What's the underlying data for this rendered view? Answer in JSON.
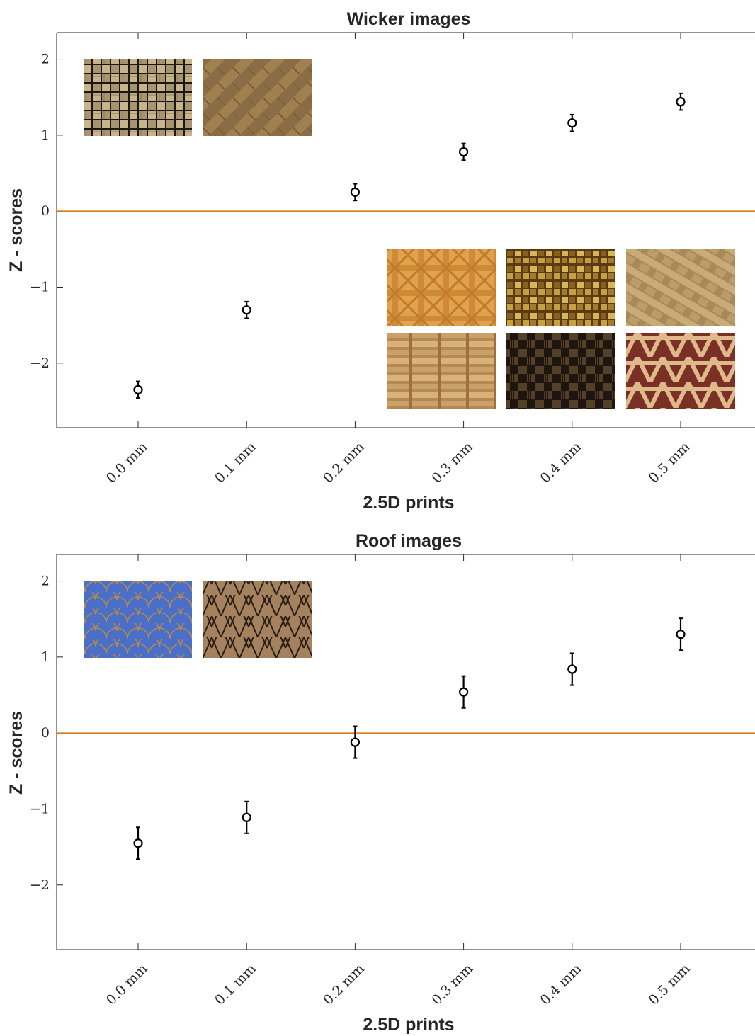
{
  "chart_data": [
    {
      "type": "scatter",
      "title": "Wicker images",
      "xlabel": "2.5D prints",
      "ylabel": "Z - scores",
      "categories": [
        "0.0 mm",
        "0.1 mm",
        "0.2 mm",
        "0.3 mm",
        "0.4 mm",
        "0.5 mm"
      ],
      "values": [
        -2.35,
        -1.3,
        0.25,
        0.78,
        1.16,
        1.44
      ],
      "error": [
        0.11,
        0.11,
        0.11,
        0.11,
        0.11,
        0.11
      ],
      "ylim": [
        -2.85,
        2.35
      ],
      "yticks": [
        2,
        1,
        0,
        -1,
        -2
      ],
      "ytick_labels": [
        "2",
        "1",
        "0",
        "−1",
        "−2"
      ],
      "reference_line": 0,
      "reference_color": "#d97a1a",
      "marker": "open-circle",
      "grid": false,
      "inset_images": {
        "top_left": [
          "wicker-basketweave-light",
          "wicker-herringbone-brown"
        ],
        "bottom_right": [
          "wicker-lattice-orange",
          "wicker-woven-gold",
          "wicker-twill-tan",
          "wicker-plain-weave-tan",
          "wicker-twill-dark",
          "wicker-triaxial-red"
        ]
      }
    },
    {
      "type": "scatter",
      "title": "Roof images",
      "xlabel": "2.5D prints",
      "ylabel": "Z - scores",
      "categories": [
        "0.0 mm",
        "0.1 mm",
        "0.2 mm",
        "0.3 mm",
        "0.4 mm",
        "0.5 mm"
      ],
      "values": [
        -1.45,
        -1.11,
        -0.12,
        0.54,
        0.84,
        1.3
      ],
      "error": [
        0.21,
        0.21,
        0.21,
        0.21,
        0.21,
        0.21
      ],
      "ylim": [
        -2.85,
        2.35
      ],
      "yticks": [
        2,
        1,
        0,
        -1,
        -2
      ],
      "ytick_labels": [
        "2",
        "1",
        "0",
        "−1",
        "−2"
      ],
      "reference_line": 0,
      "reference_color": "#d97a1a",
      "marker": "open-circle",
      "grid": false,
      "inset_images": {
        "top_left": [
          "roof-scallop-blue",
          "roof-shingle-wood"
        ]
      }
    }
  ]
}
